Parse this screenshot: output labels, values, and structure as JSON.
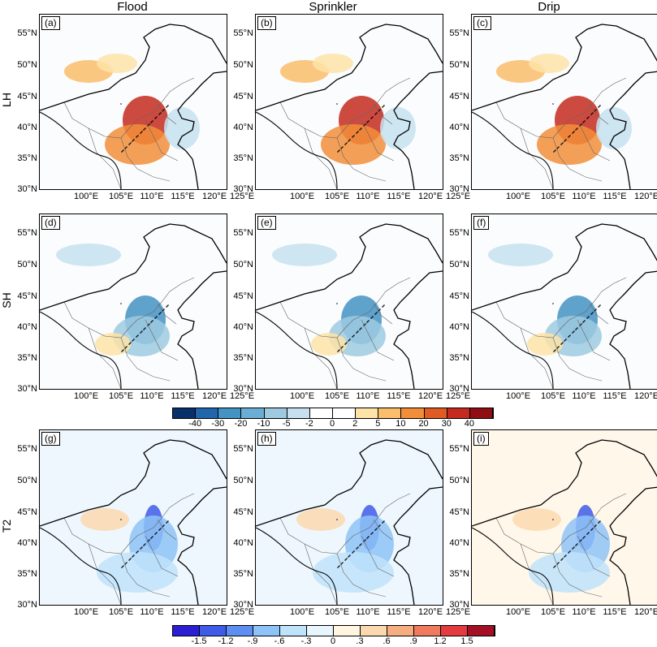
{
  "columns": [
    "Flood",
    "Sprinkler",
    "Drip"
  ],
  "rows": [
    "LH",
    "SH",
    "T2"
  ],
  "panel_labels": [
    "(a)",
    "(b)",
    "(c)",
    "(d)",
    "(e)",
    "(f)",
    "(g)",
    "(h)",
    "(i)"
  ],
  "lat_ticks": [
    "55°N",
    "50°N",
    "45°N",
    "40°N",
    "35°N",
    "30°N"
  ],
  "lon_ticks": [
    "100°E",
    "105°E",
    "110°E",
    "115°E",
    "120°E",
    "125°E"
  ],
  "colorbar_flux": {
    "labels": [
      "-40",
      "-30",
      "-20",
      "-10",
      "-5",
      "-2",
      "0",
      "2",
      "5",
      "10",
      "20",
      "30",
      "40"
    ],
    "colors": [
      "#08306b",
      "#2166ac",
      "#4393c3",
      "#6aaed6",
      "#9ecae1",
      "#c6e0f0",
      "#ffffff",
      "#ffffff",
      "#fde3a7",
      "#f9bd6b",
      "#f28e3a",
      "#e05a23",
      "#c42a1e",
      "#8e0e14"
    ]
  },
  "colorbar_t2": {
    "labels": [
      "-1.5",
      "-1.2",
      "-.9",
      "-.6",
      "-.3",
      "0",
      ".3",
      ".6",
      ".9",
      "1.2",
      "1.5"
    ],
    "colors": [
      "#2b1fd6",
      "#3f5ce8",
      "#5d8ff2",
      "#8ec3f7",
      "#bfe3fb",
      "#e8f5fd",
      "#fff5e0",
      "#fbd9b0",
      "#f6ad80",
      "#ef7a5e",
      "#e33b3f",
      "#a50f24"
    ]
  }
}
